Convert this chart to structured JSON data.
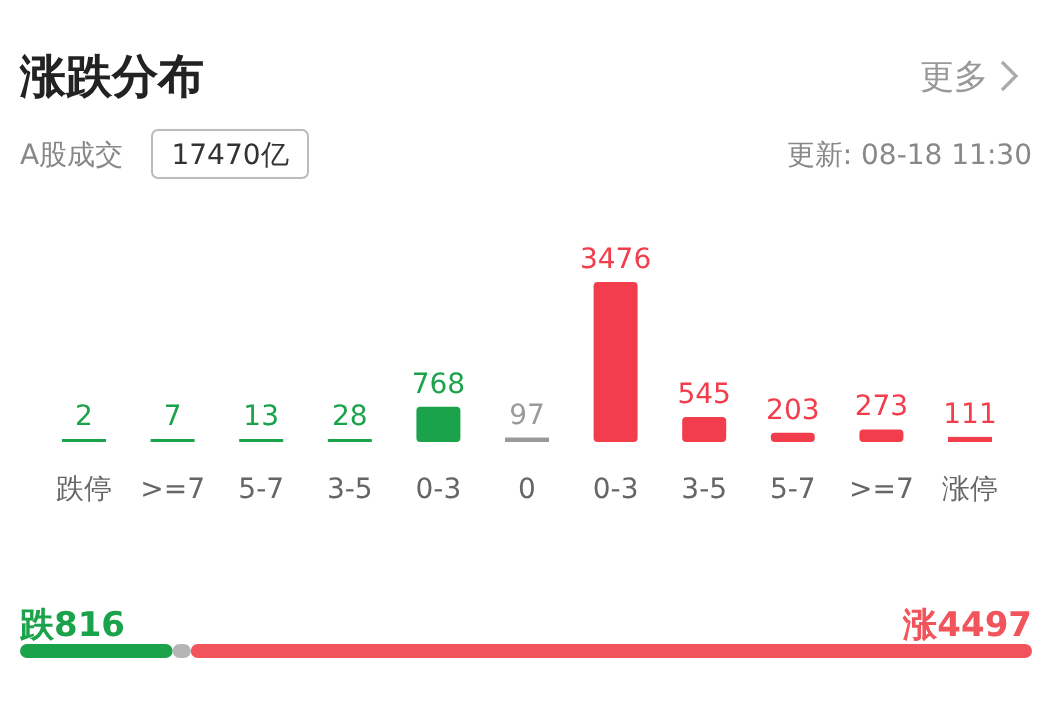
{
  "chart_data": [
    {
      "type": "bar",
      "title": "涨跌分布",
      "annotations": [
        "更多",
        "A股成交",
        "17470亿",
        "更新: 08-18 11:30"
      ],
      "categories": [
        "跌停",
        ">=7",
        "5-7",
        "3-5",
        "0-3",
        "0",
        "0-3",
        "3-5",
        "5-7",
        ">=7",
        "涨停"
      ],
      "values": [
        2,
        7,
        13,
        28,
        768,
        97,
        3476,
        545,
        203,
        273,
        111
      ],
      "colors": [
        "#1ba34b",
        "#1ba34b",
        "#1ba34b",
        "#1ba34b",
        "#1ba34b",
        "#9a9a9a",
        "#f23d4c",
        "#f23d4c",
        "#f23d4c",
        "#f23d4c",
        "#f23d4c"
      ],
      "data_labels": true
    },
    {
      "type": "bar",
      "orientation": "horizontal",
      "stacked": true,
      "categories": [
        null
      ],
      "series": [
        {
          "color": "#1ba34b",
          "values": [
            816
          ],
          "value_labels": [
            "跌816"
          ]
        },
        {
          "color": "#b5b5b5",
          "values": [
            97
          ],
          "value_labels": [
            null
          ]
        },
        {
          "color": "#f2545c",
          "values": [
            4497
          ],
          "value_labels": [
            "涨4497"
          ]
        }
      ]
    }
  ]
}
